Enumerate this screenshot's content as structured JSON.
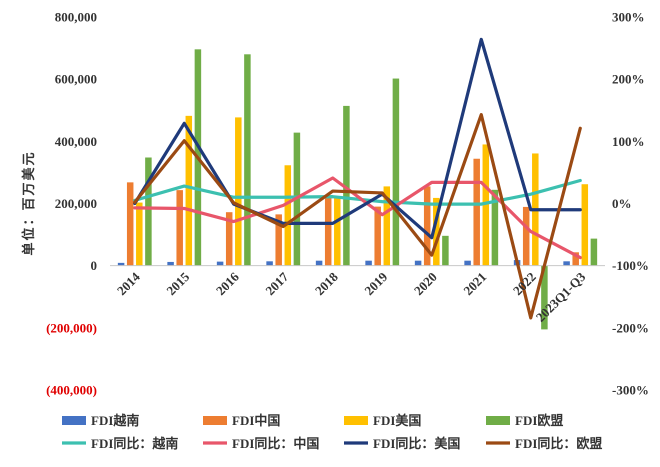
{
  "chart_data": {
    "type": "bar",
    "categories": [
      "2014",
      "2015",
      "2016",
      "2017",
      "2018",
      "2019",
      "2020",
      "2021",
      "2022",
      "2023Q1-Q3"
    ],
    "ylabel": "单位：百万美元",
    "left_axis": {
      "ylim": [
        -400000,
        800000
      ],
      "ticks": [
        800000,
        600000,
        400000,
        200000,
        0,
        -200000,
        -400000
      ],
      "tick_labels": [
        "800,000",
        "600,000",
        "400,000",
        "200,000",
        "0",
        "(200,000)",
        "(400,000)"
      ],
      "negative_label_color": "#e00000"
    },
    "right_axis": {
      "ylim": [
        -3.0,
        3.0
      ],
      "ticks": [
        3,
        2,
        1,
        0,
        -1,
        -2,
        -3
      ],
      "tick_labels": [
        "300%",
        "200%",
        "100%",
        "0%",
        "-100%",
        "-200%",
        "-300%"
      ]
    },
    "bar_series": [
      {
        "name": "FDI越南",
        "color": "#4472c4",
        "values": [
          9000,
          12000,
          13000,
          14000,
          16000,
          16000,
          16000,
          16000,
          18000,
          14000
        ]
      },
      {
        "name": "FDI中国",
        "color": "#ed7d31",
        "values": [
          268000,
          243000,
          172000,
          165000,
          222000,
          190000,
          255000,
          344000,
          189000,
          43000
        ]
      },
      {
        "name": "FDI美国",
        "color": "#ffc000",
        "values": [
          203000,
          482000,
          477000,
          323000,
          222000,
          255000,
          218000,
          390000,
          361000,
          262000
        ]
      },
      {
        "name": "FDI欧盟",
        "color": "#70ad47",
        "values": [
          348000,
          696000,
          680000,
          428000,
          514000,
          602000,
          96000,
          244000,
          -205000,
          87000
        ]
      }
    ],
    "line_series": [
      {
        "name": "FDI同比：越南",
        "color": "#3cc0b0",
        "values": [
          0.05,
          0.28,
          0.1,
          0.1,
          0.11,
          0.03,
          -0.01,
          -0.01,
          0.15,
          0.37
        ]
      },
      {
        "name": "FDI同比：中国",
        "color": "#e8566a",
        "values": [
          -0.07,
          -0.08,
          -0.29,
          -0.03,
          0.41,
          -0.18,
          0.34,
          0.34,
          -0.45,
          -0.87
        ]
      },
      {
        "name": "FDI同比：美国",
        "color": "#1f3a7a",
        "values": [
          0,
          1.29,
          -0.01,
          -0.32,
          -0.32,
          0.15,
          -0.55,
          2.64,
          -0.1,
          -0.1
        ]
      },
      {
        "name": "FDI同比：欧盟",
        "color": "#9b4a13",
        "values": [
          0.02,
          1.01,
          0.01,
          -0.37,
          0.2,
          0.17,
          -0.83,
          1.43,
          -1.84,
          1.21
        ]
      }
    ],
    "legend_position": "bottom",
    "grid": false
  }
}
